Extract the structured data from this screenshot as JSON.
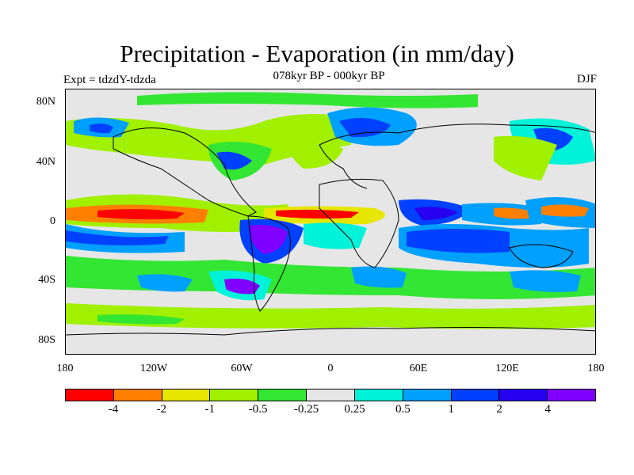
{
  "title": "Precipitation - Evaporation (in mm/day)",
  "subtitle": "078kyr BP - 000kyr BP",
  "experiment": "Expt = tdzdY-tdzda",
  "season": "DJF",
  "lat_labels": [
    "80N",
    "40N",
    "0",
    "40S",
    "80S"
  ],
  "lon_labels": [
    "180",
    "120W",
    "60W",
    "0",
    "60E",
    "120E",
    "180"
  ],
  "colorbar": {
    "colors": [
      "#ff0000",
      "#ff8000",
      "#e6e600",
      "#a0f000",
      "#33e633",
      "#e6e6e6",
      "#00f2d9",
      "#00a0ff",
      "#0040ff",
      "#2800f0",
      "#8000ff"
    ],
    "labels": [
      "-4",
      "-2",
      "-1",
      "-0.5",
      "-0.25",
      "0.25",
      "0.5",
      "1",
      "2",
      "4"
    ]
  }
}
